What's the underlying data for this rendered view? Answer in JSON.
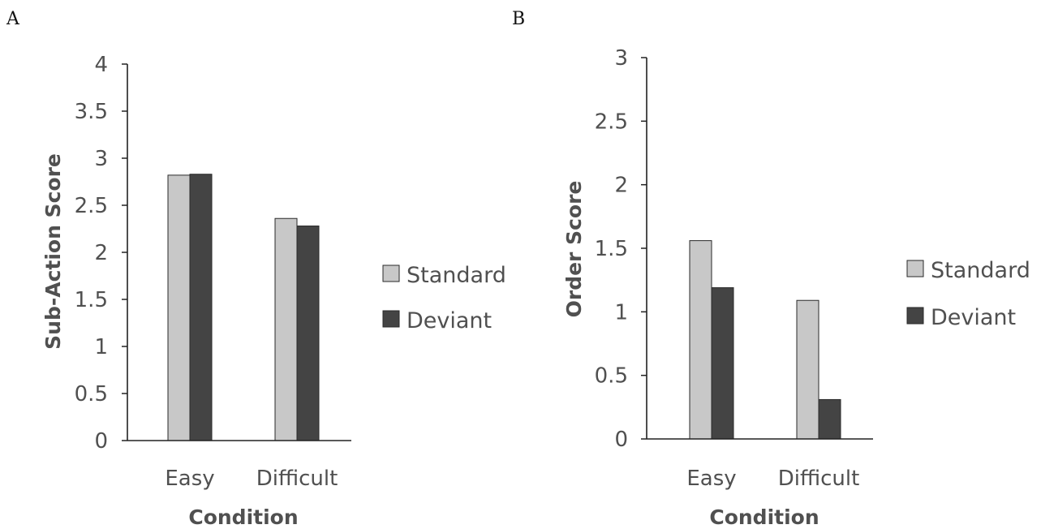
{
  "colors": {
    "standard": "#c8c8c8",
    "deviant": "#444444",
    "axis": "#222222",
    "text": "#505050"
  },
  "chart_data": [
    {
      "type": "bar",
      "panel_label": "A",
      "categories": [
        "Easy",
        "Difficult"
      ],
      "series": [
        {
          "name": "Standard",
          "values": [
            2.82,
            2.36
          ]
        },
        {
          "name": "Deviant",
          "values": [
            2.83,
            2.28
          ]
        }
      ],
      "xlabel": "Condition",
      "ylabel": "Sub-Action Score",
      "ylim": [
        0,
        4
      ],
      "yticks": [
        "0",
        "0.5",
        "1",
        "1.5",
        "2",
        "2.5",
        "3",
        "3.5",
        "4"
      ],
      "grid": false,
      "legend": "right"
    },
    {
      "type": "bar",
      "panel_label": "B",
      "categories": [
        "Easy",
        "Difficult"
      ],
      "series": [
        {
          "name": "Standard",
          "values": [
            1.56,
            1.09
          ]
        },
        {
          "name": "Deviant",
          "values": [
            1.19,
            0.31
          ]
        }
      ],
      "xlabel": "Condition",
      "ylabel": "Order Score",
      "ylim": [
        0,
        3
      ],
      "yticks": [
        "0",
        "0.5",
        "1",
        "1.5",
        "2",
        "2.5",
        "3"
      ],
      "grid": false,
      "legend": "right"
    }
  ]
}
